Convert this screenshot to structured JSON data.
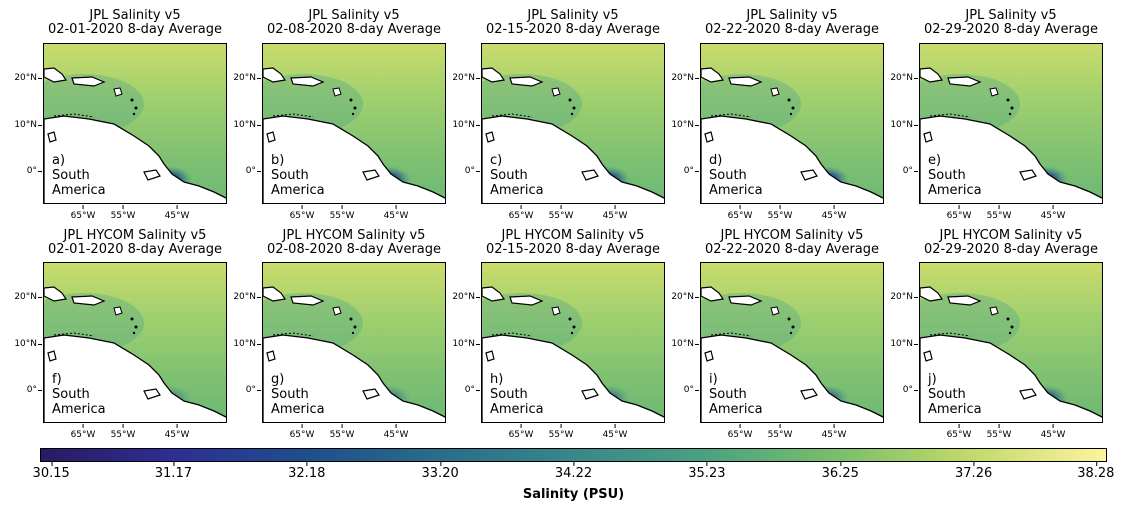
{
  "panels": [
    {
      "id": "a",
      "title": "JPL Salinity v5",
      "date": "02-01-2020 8-day Average",
      "label": "a)",
      "region": "South",
      "region2": "America",
      "plume": 1.0
    },
    {
      "id": "b",
      "title": "JPL Salinity v5",
      "date": "02-08-2020 8-day Average",
      "label": "b)",
      "region": "South",
      "region2": "America",
      "plume": 1.0
    },
    {
      "id": "c",
      "title": "JPL Salinity v5",
      "date": "02-15-2020 8-day Average",
      "label": "c)",
      "region": "South",
      "region2": "America",
      "plume": 1.0
    },
    {
      "id": "d",
      "title": "JPL Salinity v5",
      "date": "02-22-2020 8-day Average",
      "label": "d)",
      "region": "South",
      "region2": "America",
      "plume": 1.0
    },
    {
      "id": "e",
      "title": "JPL Salinity v5",
      "date": "02-29-2020 8-day Average",
      "label": "e)",
      "region": "South",
      "region2": "America",
      "plume": 1.0
    },
    {
      "id": "f",
      "title": "JPL HYCOM Salinity v5",
      "date": "02-01-2020 8-day Average",
      "label": "f)",
      "region": "South",
      "region2": "America",
      "plume": 0.4
    },
    {
      "id": "g",
      "title": "JPL HYCOM Salinity v5",
      "date": "02-08-2020 8-day Average",
      "label": "g)",
      "region": "South",
      "region2": "America",
      "plume": 0.5
    },
    {
      "id": "h",
      "title": "JPL HYCOM Salinity v5",
      "date": "02-15-2020 8-day Average",
      "label": "h)",
      "region": "South",
      "region2": "America",
      "plume": 0.6
    },
    {
      "id": "i",
      "title": "JPL HYCOM Salinity v5",
      "date": "02-22-2020 8-day Average",
      "label": "i)",
      "region": "South",
      "region2": "America",
      "plume": 0.7
    },
    {
      "id": "j",
      "title": "JPL HYCOM Salinity v5",
      "date": "02-29-2020 8-day Average",
      "label": "j)",
      "region": "South",
      "region2": "America",
      "plume": 0.8
    }
  ],
  "lat_ticks": [
    "20°N",
    "10°N",
    "0°"
  ],
  "lon_ticks": [
    "65°W",
    "55°W",
    "45°W"
  ],
  "colorbar": {
    "label": "Salinity (PSU)",
    "ticks": [
      "30.15",
      "31.17",
      "32.18",
      "33.20",
      "34.22",
      "35.23",
      "36.25",
      "37.26",
      "38.28"
    ],
    "min": 30.15,
    "max": 38.28,
    "colormap": "haline"
  }
}
